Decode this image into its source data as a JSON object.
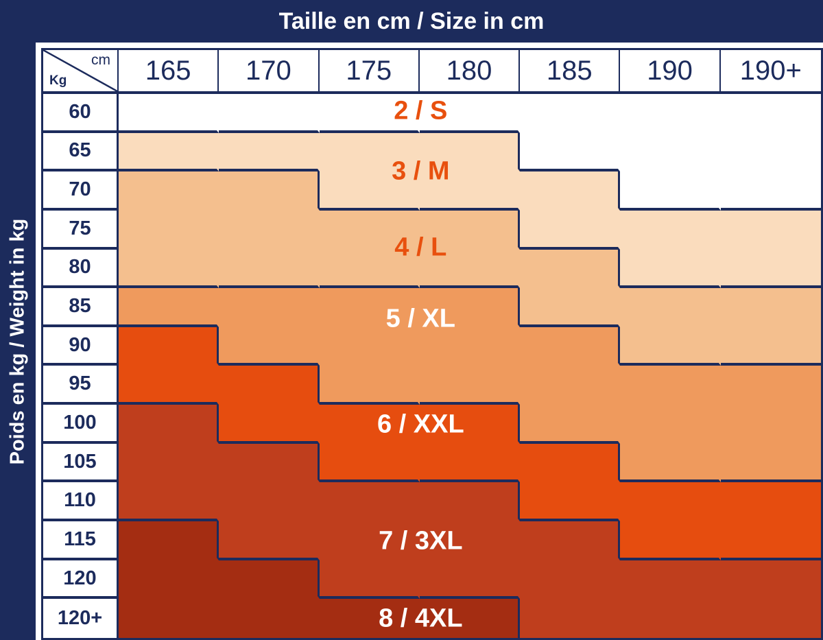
{
  "titles": {
    "top": "Taille en cm / Size in cm",
    "left": "Poids en kg / Weight in kg"
  },
  "corner": {
    "top_right": "cm",
    "bottom_left": "Kg"
  },
  "colors": {
    "navy": "#1c2b5c",
    "white": "#ffffff",
    "label_orange": "#e8500e",
    "sizes": {
      "2/S": "#ffffff",
      "3/M": "#fadcbd",
      "4/L": "#f4bf8e",
      "5/XL": "#ef9a5d",
      "6/XXL": "#e64d0f",
      "7/3XL": "#bf3e1d",
      "8/4XL": "#a42d12"
    }
  },
  "chart_data": {
    "type": "heatmap",
    "title": "Taille en cm / Size in cm",
    "xlabel": "Taille en cm / Size in cm",
    "ylabel": "Poids en kg / Weight in kg",
    "x_unit": "cm",
    "y_unit": "Kg",
    "x_categories": [
      "165",
      "170",
      "175",
      "180",
      "185",
      "190",
      "190+"
    ],
    "y_categories": [
      "60",
      "65",
      "70",
      "75",
      "80",
      "85",
      "90",
      "95",
      "100",
      "105",
      "110",
      "115",
      "120",
      "120+"
    ],
    "sizes": [
      "2/S",
      "3/M",
      "4/L",
      "5/XL",
      "6/XXL",
      "7/3XL",
      "8/4XL"
    ],
    "legend": "none",
    "grid": "region-boundaries-only",
    "matrix": [
      [
        "2/S",
        "2/S",
        "2/S",
        "2/S",
        "2/S",
        "2/S",
        "2/S"
      ],
      [
        "3/M",
        "3/M",
        "3/M",
        "3/M",
        "2/S",
        "2/S",
        "2/S"
      ],
      [
        "4/L",
        "4/L",
        "3/M",
        "3/M",
        "3/M",
        "2/S",
        "2/S"
      ],
      [
        "4/L",
        "4/L",
        "4/L",
        "4/L",
        "3/M",
        "3/M",
        "3/M"
      ],
      [
        "4/L",
        "4/L",
        "4/L",
        "4/L",
        "4/L",
        "3/M",
        "3/M"
      ],
      [
        "5/XL",
        "5/XL",
        "5/XL",
        "5/XL",
        "4/L",
        "4/L",
        "4/L"
      ],
      [
        "6/XXL",
        "5/XL",
        "5/XL",
        "5/XL",
        "5/XL",
        "4/L",
        "4/L"
      ],
      [
        "6/XXL",
        "6/XXL",
        "5/XL",
        "5/XL",
        "5/XL",
        "5/XL",
        "5/XL"
      ],
      [
        "7/3XL",
        "6/XXL",
        "6/XXL",
        "6/XXL",
        "5/XL",
        "5/XL",
        "5/XL"
      ],
      [
        "7/3XL",
        "7/3XL",
        "6/XXL",
        "6/XXL",
        "6/XXL",
        "5/XL",
        "5/XL"
      ],
      [
        "7/3XL",
        "7/3XL",
        "7/3XL",
        "7/3XL",
        "6/XXL",
        "6/XXL",
        "6/XXL"
      ],
      [
        "8/4XL",
        "7/3XL",
        "7/3XL",
        "7/3XL",
        "7/3XL",
        "6/XXL",
        "6/XXL"
      ],
      [
        "8/4XL",
        "8/4XL",
        "7/3XL",
        "7/3XL",
        "7/3XL",
        "7/3XL",
        "7/3XL"
      ],
      [
        "8/4XL",
        "8/4XL",
        "8/4XL",
        "8/4XL",
        "7/3XL",
        "7/3XL",
        "7/3XL"
      ]
    ],
    "region_labels": [
      {
        "text": "2 / S",
        "color": "#e8500e",
        "x_pct": 43,
        "y_pct": 3.2
      },
      {
        "text": "3 / M",
        "color": "#e8500e",
        "x_pct": 43,
        "y_pct": 14.3
      },
      {
        "text": "4 / L",
        "color": "#e8500e",
        "x_pct": 43,
        "y_pct": 28.3
      },
      {
        "text": "5 / XL",
        "color": "#ffffff",
        "x_pct": 43,
        "y_pct": 41.3
      },
      {
        "text": "6 / XXL",
        "color": "#ffffff",
        "x_pct": 43,
        "y_pct": 60.8
      },
      {
        "text": "7 / 3XL",
        "color": "#ffffff",
        "x_pct": 43,
        "y_pct": 82.2
      },
      {
        "text": "8 / 4XL",
        "color": "#ffffff",
        "x_pct": 43,
        "y_pct": 96.5
      }
    ]
  }
}
